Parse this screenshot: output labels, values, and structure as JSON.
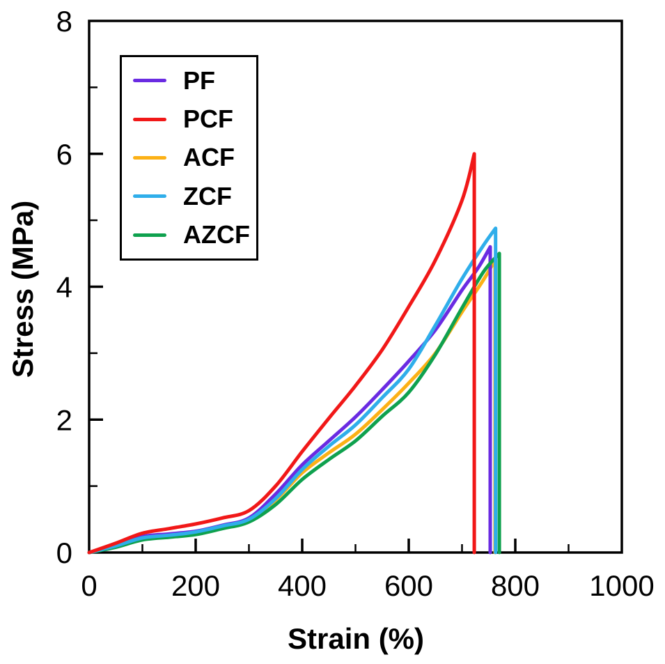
{
  "axes": {
    "x": {
      "title": "Strain (%)",
      "min": 0,
      "max": 1000,
      "major_tick_values": [
        200,
        400,
        600,
        800
      ],
      "minor_tick_values": [
        100,
        300,
        500,
        700,
        900
      ],
      "label_values": [
        0,
        200,
        400,
        600,
        800,
        1000
      ]
    },
    "y": {
      "title": "Stress (MPa)",
      "min": 0,
      "max": 8,
      "major_tick_values": [
        2,
        4,
        6
      ],
      "minor_tick_values": [
        1,
        3,
        5,
        7
      ],
      "label_values": [
        0,
        2,
        4,
        6,
        8
      ]
    }
  },
  "legend": {
    "position": "upper-left",
    "entries": [
      "PF",
      "PCF",
      "ACF",
      "ZCF",
      "AZCF"
    ]
  },
  "chart_data": {
    "type": "line",
    "xlabel": "Strain (%)",
    "ylabel": "Stress (MPa)",
    "xlim": [
      0,
      1000
    ],
    "ylim": [
      0,
      8
    ],
    "grid": false,
    "legend_position": "upper-left",
    "draw_order": [
      "ACF",
      "PF",
      "AZCF",
      "ZCF",
      "PCF"
    ],
    "series": [
      {
        "name": "PF",
        "color": "#6A2BE2",
        "break_strain": 753,
        "peak_stress": 4.6,
        "points": [
          [
            0,
            0
          ],
          [
            50,
            0.11
          ],
          [
            100,
            0.24
          ],
          [
            150,
            0.28
          ],
          [
            200,
            0.32
          ],
          [
            250,
            0.41
          ],
          [
            300,
            0.52
          ],
          [
            350,
            0.88
          ],
          [
            400,
            1.32
          ],
          [
            450,
            1.68
          ],
          [
            500,
            2.04
          ],
          [
            550,
            2.45
          ],
          [
            600,
            2.88
          ],
          [
            650,
            3.35
          ],
          [
            700,
            3.95
          ],
          [
            730,
            4.28
          ],
          [
            753,
            4.6
          ],
          [
            753,
            0
          ]
        ]
      },
      {
        "name": "PCF",
        "color": "#F11818",
        "break_strain": 723,
        "peak_stress": 6.0,
        "points": [
          [
            0,
            0
          ],
          [
            50,
            0.14
          ],
          [
            100,
            0.29
          ],
          [
            150,
            0.36
          ],
          [
            200,
            0.43
          ],
          [
            250,
            0.52
          ],
          [
            300,
            0.63
          ],
          [
            350,
            1.0
          ],
          [
            400,
            1.52
          ],
          [
            450,
            2.02
          ],
          [
            500,
            2.51
          ],
          [
            550,
            3.05
          ],
          [
            600,
            3.7
          ],
          [
            650,
            4.4
          ],
          [
            700,
            5.3
          ],
          [
            723,
            6.0
          ],
          [
            723,
            0
          ]
        ]
      },
      {
        "name": "ACF",
        "color": "#FCB116",
        "break_strain": 762,
        "peak_stress": 4.4,
        "points": [
          [
            0,
            0
          ],
          [
            50,
            0.1
          ],
          [
            100,
            0.23
          ],
          [
            150,
            0.27
          ],
          [
            200,
            0.31
          ],
          [
            250,
            0.39
          ],
          [
            300,
            0.49
          ],
          [
            350,
            0.79
          ],
          [
            400,
            1.2
          ],
          [
            450,
            1.5
          ],
          [
            500,
            1.78
          ],
          [
            550,
            2.15
          ],
          [
            600,
            2.55
          ],
          [
            650,
            3.0
          ],
          [
            700,
            3.62
          ],
          [
            740,
            4.1
          ],
          [
            762,
            4.4
          ],
          [
            762,
            0
          ]
        ]
      },
      {
        "name": "ZCF",
        "color": "#2FAEEA",
        "break_strain": 763,
        "peak_stress": 4.88,
        "points": [
          [
            0,
            0
          ],
          [
            50,
            0.1
          ],
          [
            100,
            0.22
          ],
          [
            150,
            0.26
          ],
          [
            200,
            0.31
          ],
          [
            250,
            0.4
          ],
          [
            300,
            0.5
          ],
          [
            350,
            0.81
          ],
          [
            400,
            1.25
          ],
          [
            450,
            1.6
          ],
          [
            500,
            1.92
          ],
          [
            550,
            2.33
          ],
          [
            600,
            2.76
          ],
          [
            650,
            3.42
          ],
          [
            700,
            4.12
          ],
          [
            740,
            4.62
          ],
          [
            763,
            4.88
          ],
          [
            763,
            0
          ]
        ]
      },
      {
        "name": "AZCF",
        "color": "#0FA14E",
        "break_strain": 770,
        "peak_stress": 4.5,
        "points": [
          [
            0,
            0
          ],
          [
            50,
            0.08
          ],
          [
            100,
            0.19
          ],
          [
            150,
            0.23
          ],
          [
            200,
            0.27
          ],
          [
            250,
            0.36
          ],
          [
            300,
            0.46
          ],
          [
            350,
            0.72
          ],
          [
            400,
            1.1
          ],
          [
            450,
            1.4
          ],
          [
            500,
            1.68
          ],
          [
            550,
            2.05
          ],
          [
            600,
            2.41
          ],
          [
            650,
            2.98
          ],
          [
            700,
            3.68
          ],
          [
            740,
            4.22
          ],
          [
            770,
            4.5
          ],
          [
            770,
            0
          ]
        ]
      }
    ]
  }
}
